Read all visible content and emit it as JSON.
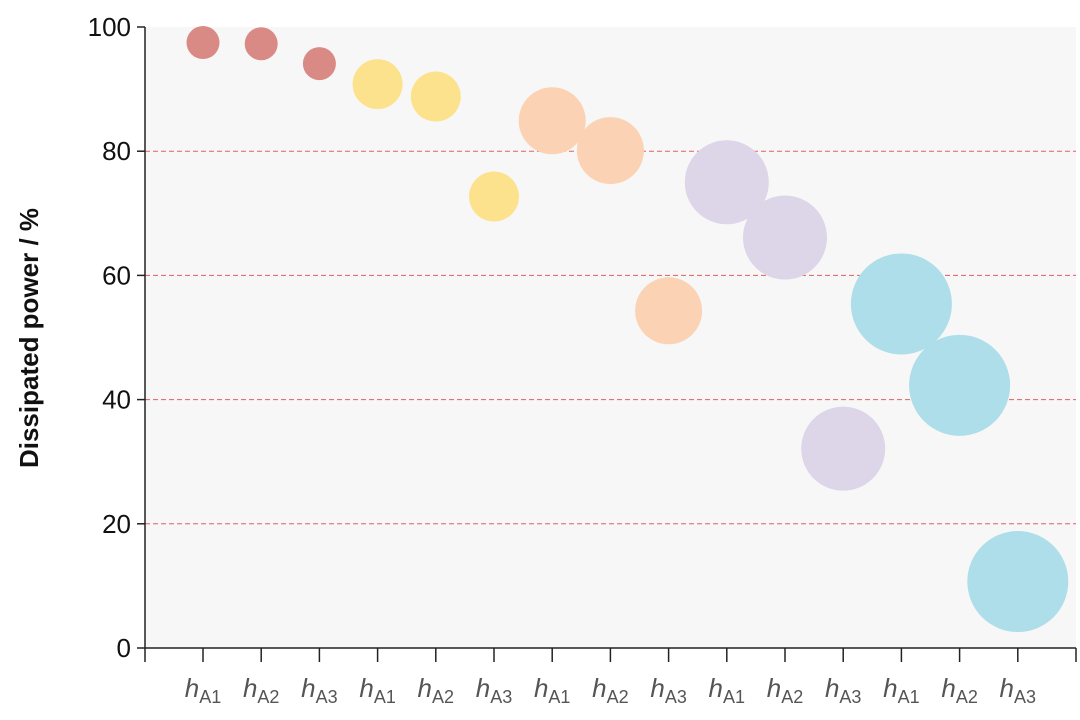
{
  "chart_data": {
    "type": "scatter",
    "title": "",
    "xlabel": "",
    "ylabel": "Dissipated power / %",
    "ylim": [
      0,
      100
    ],
    "yticks": [
      0,
      20,
      40,
      60,
      80,
      100
    ],
    "grid": "horizontal dashed lines at 20, 40, 60, 80",
    "grid_color": "#e06060",
    "plot_background": "#f7f7f7",
    "categories": [
      {
        "var": "h",
        "sub": "A1"
      },
      {
        "var": "h",
        "sub": "A2"
      },
      {
        "var": "h",
        "sub": "A3"
      },
      {
        "var": "h",
        "sub": "A1"
      },
      {
        "var": "h",
        "sub": "A2"
      },
      {
        "var": "h",
        "sub": "A3"
      },
      {
        "var": "h",
        "sub": "A1"
      },
      {
        "var": "h",
        "sub": "A2"
      },
      {
        "var": "h",
        "sub": "A3"
      },
      {
        "var": "h",
        "sub": "A1"
      },
      {
        "var": "h",
        "sub": "A2"
      },
      {
        "var": "h",
        "sub": "A3"
      },
      {
        "var": "h",
        "sub": "A1"
      },
      {
        "var": "h",
        "sub": "A2"
      },
      {
        "var": "h",
        "sub": "A3"
      }
    ],
    "groups": [
      {
        "color": "#d98a85",
        "size": 1,
        "points": [
          {
            "x": 0,
            "y": 97.5
          },
          {
            "x": 1,
            "y": 97.3
          },
          {
            "x": 2,
            "y": 94.1
          }
        ]
      },
      {
        "color": "#fde28e",
        "size": 2,
        "points": [
          {
            "x": 3,
            "y": 90.8
          },
          {
            "x": 4,
            "y": 88.8
          },
          {
            "x": 5,
            "y": 72.7
          }
        ]
      },
      {
        "color": "#fbd3b4",
        "size": 3,
        "points": [
          {
            "x": 6,
            "y": 84.9
          },
          {
            "x": 7,
            "y": 80.1
          },
          {
            "x": 8,
            "y": 54.3
          }
        ]
      },
      {
        "color": "#ddd5e8",
        "size": 4,
        "points": [
          {
            "x": 9,
            "y": 75.0
          },
          {
            "x": 10,
            "y": 66.1
          },
          {
            "x": 11,
            "y": 32.1
          }
        ]
      },
      {
        "color": "#addee9",
        "size": 5,
        "points": [
          {
            "x": 12,
            "y": 55.4
          },
          {
            "x": 13,
            "y": 42.3
          },
          {
            "x": 14,
            "y": 10.7
          }
        ]
      }
    ]
  }
}
